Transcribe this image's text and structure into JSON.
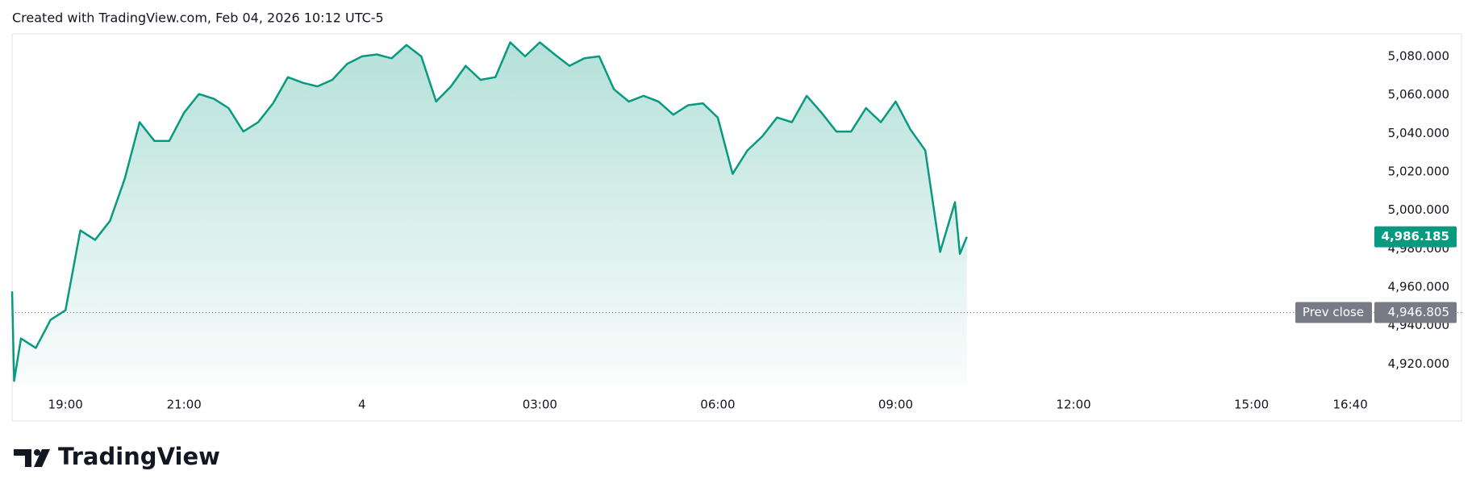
{
  "chart_data": {
    "type": "line",
    "title": "Created with TradingView.com, Feb 04, 2026 10:12 UTC-5",
    "brand": "TradingView",
    "x": [
      "18:06",
      "18:08",
      "18:15",
      "18:30",
      "18:45",
      "19:00",
      "19:15",
      "19:30",
      "19:45",
      "20:00",
      "20:15",
      "20:30",
      "20:45",
      "21:00",
      "21:15",
      "21:30",
      "21:45",
      "22:00",
      "22:15",
      "22:30",
      "22:45",
      "23:00",
      "23:15",
      "23:30",
      "23:45",
      "00:00",
      "00:15",
      "00:30",
      "00:45",
      "01:00",
      "01:15",
      "01:30",
      "01:45",
      "02:00",
      "02:15",
      "02:30",
      "02:45",
      "03:00",
      "03:15",
      "03:30",
      "03:45",
      "04:00",
      "04:15",
      "04:30",
      "04:45",
      "05:00",
      "05:15",
      "05:30",
      "05:45",
      "06:00",
      "06:15",
      "06:30",
      "06:45",
      "07:00",
      "07:15",
      "07:30",
      "07:45",
      "08:00",
      "08:15",
      "08:30",
      "08:45",
      "09:00",
      "09:15",
      "09:30",
      "09:45",
      "10:00",
      "10:05",
      "10:12"
    ],
    "series": [
      {
        "color": "#089981",
        "values": [
          4957.8,
          4911.3,
          4933.3,
          4928.4,
          4943.1,
          4948.0,
          4989.5,
          4984.6,
          4994.4,
          5016.4,
          5045.8,
          5036.0,
          5036.0,
          5050.7,
          5060.4,
          5058.0,
          5053.1,
          5040.9,
          5045.8,
          5055.6,
          5069.2,
          5066.3,
          5064.4,
          5067.8,
          5076.1,
          5080.0,
          5081.0,
          5079.0,
          5085.9,
          5080.0,
          5056.5,
          5064.4,
          5075.1,
          5067.8,
          5069.2,
          5087.3,
          5080.0,
          5087.3,
          5081.0,
          5075.1,
          5079.0,
          5080.0,
          5062.9,
          5056.5,
          5059.5,
          5056.5,
          5049.7,
          5054.6,
          5055.6,
          5048.2,
          5018.9,
          5031.1,
          5038.4,
          5048.2,
          5045.8,
          5059.5,
          5050.7,
          5040.9,
          5040.9,
          5053.1,
          5045.8,
          5056.5,
          5041.9,
          5031.1,
          4978.3,
          5004.2,
          4977.3,
          4986.185
        ]
      }
    ],
    "xlim": [
      "18:06",
      "17:06"
    ],
    "xticks": [
      "19:00",
      "21:00",
      {
        "value": "00:00",
        "label": "4"
      },
      "03:00",
      "06:00",
      "09:00",
      "12:00",
      "15:00",
      "16:40"
    ],
    "ylim": [
      4909.7,
      5091.7
    ],
    "yticks": [
      {
        "value": 4920,
        "label": "4,920.000"
      },
      {
        "value": 4940,
        "label": "4,940.000"
      },
      {
        "value": 4960,
        "label": "4,960.000"
      },
      {
        "value": 4980,
        "label": "4,980.000"
      },
      {
        "value": 5000,
        "label": "5,000.000"
      },
      {
        "value": 5020,
        "label": "5,020.000"
      },
      {
        "value": 5040,
        "label": "5,040.000"
      },
      {
        "value": 5060,
        "label": "5,060.000"
      },
      {
        "value": 5080,
        "label": "5,080.000"
      }
    ],
    "last_price": {
      "value": 4986.185,
      "label": "4,986.185",
      "color": "#089981"
    },
    "prev_close": {
      "name": "Prev close",
      "value": 4946.805,
      "label": "4,946.805",
      "color": "#787b86"
    }
  }
}
